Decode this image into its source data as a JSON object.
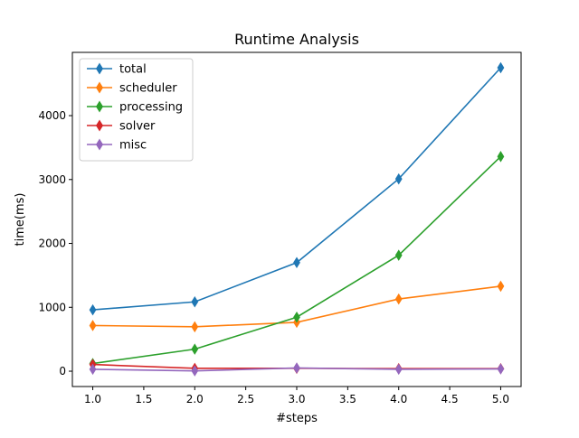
{
  "chart_data": {
    "type": "line",
    "title": "Runtime Analysis",
    "xlabel": "#steps",
    "ylabel": "time(ms)",
    "x": [
      1.0,
      2.0,
      3.0,
      4.0,
      5.0
    ],
    "xlim": [
      0.8,
      5.2
    ],
    "ylim": [
      -240,
      4990
    ],
    "xticks": [
      1.0,
      1.5,
      2.0,
      2.5,
      3.0,
      3.5,
      4.0,
      4.5,
      5.0
    ],
    "xtick_labels": [
      "1.0",
      "1.5",
      "2.0",
      "2.5",
      "3.0",
      "3.5",
      "4.0",
      "4.5",
      "5.0"
    ],
    "yticks": [
      0,
      1000,
      2000,
      3000,
      4000
    ],
    "ytick_labels": [
      "0",
      "1000",
      "2000",
      "3000",
      "4000"
    ],
    "marker": "diamond",
    "grid": false,
    "legend_position": "top-left",
    "series": [
      {
        "name": "total",
        "color": "#1f77b4",
        "values": [
          960,
          1085,
          1700,
          3010,
          4750
        ]
      },
      {
        "name": "scheduler",
        "color": "#ff7f0e",
        "values": [
          715,
          695,
          765,
          1130,
          1330
        ]
      },
      {
        "name": "processing",
        "color": "#2ca02c",
        "values": [
          120,
          345,
          845,
          1815,
          3360
        ]
      },
      {
        "name": "solver",
        "color": "#d62728",
        "values": [
          105,
          45,
          45,
          40,
          40
        ]
      },
      {
        "name": "misc",
        "color": "#9467bd",
        "values": [
          30,
          5,
          50,
          30,
          35
        ]
      }
    ]
  }
}
